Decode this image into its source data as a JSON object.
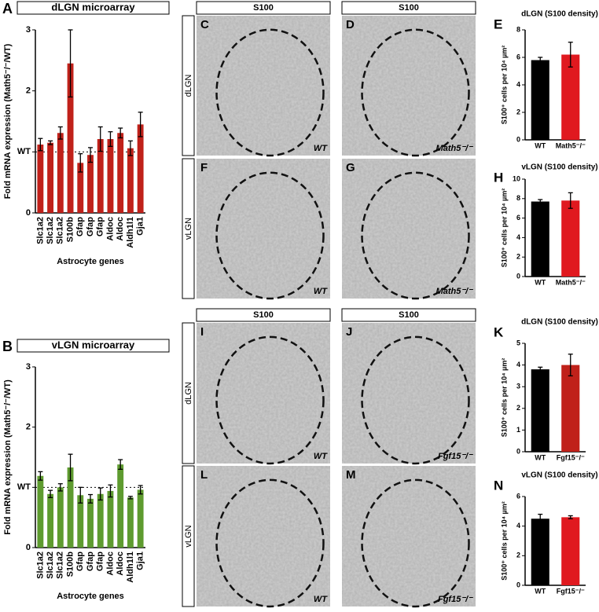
{
  "chart_data": [
    {
      "type": "bar",
      "panel": "A",
      "title": "dLGN microarray",
      "y_label": "Fold mRNA expression (Math5⁻/⁻/WT)",
      "x_label": "Astrocyte genes",
      "categories": [
        "Slc1a2",
        "Slc1a2",
        "Slc1a2",
        "S100b",
        "Gfap",
        "Gfap",
        "Gfap",
        "Aldoc",
        "Aldoc",
        "Aldh1l1",
        "Gja1"
      ],
      "values": [
        1.12,
        1.15,
        1.31,
        2.45,
        0.82,
        0.95,
        1.21,
        1.21,
        1.31,
        1.06,
        1.45
      ],
      "errors": [
        0.1,
        0.03,
        0.1,
        0.55,
        0.15,
        0.12,
        0.2,
        0.12,
        0.08,
        0.12,
        0.2
      ],
      "color": "#c0211a",
      "ylim": [
        0,
        3
      ],
      "yticks": [
        0,
        {
          "value": 1,
          "label": "WT"
        },
        2,
        3
      ],
      "reference_line": 1
    },
    {
      "type": "bar",
      "panel": "B",
      "title": "vLGN microarray",
      "y_label": "Fold mRNA expression (Math5⁻/⁻/WT)",
      "x_label": "Astrocyte genes",
      "categories": [
        "Slc1a2",
        "Slc1a2",
        "Slc1a2",
        "S100b",
        "Gfap",
        "Gfap",
        "Gfap",
        "Aldoc",
        "Aldoc",
        "Aldh1l1",
        "Gja1"
      ],
      "values": [
        1.19,
        0.89,
        1.0,
        1.33,
        0.87,
        0.81,
        0.89,
        0.94,
        1.38,
        0.83,
        0.96
      ],
      "errors": [
        0.07,
        0.06,
        0.06,
        0.22,
        0.13,
        0.07,
        0.1,
        0.1,
        0.08,
        0.02,
        0.07
      ],
      "color": "#5e9b2f",
      "ylim": [
        0,
        3
      ],
      "yticks": [
        0,
        {
          "value": 1,
          "label": "WT"
        },
        2,
        3
      ],
      "reference_line": 1
    },
    {
      "type": "bar",
      "panel": "E",
      "title": "dLGN (S100 density)",
      "y_label": "S100⁺ cells per 10⁴ µm²",
      "categories": [
        "WT",
        "Math5⁻/⁻"
      ],
      "values": [
        5.8,
        6.2
      ],
      "errors": [
        0.2,
        0.9
      ],
      "colors": [
        "#000000",
        "#e0191f"
      ],
      "ylim": [
        0,
        8
      ],
      "yticks": [
        0,
        2,
        4,
        6,
        8
      ]
    },
    {
      "type": "bar",
      "panel": "H",
      "title": "vLGN (S100 density)",
      "y_label": "S100⁺ cells per 10⁴ µm²",
      "categories": [
        "WT",
        "Math5⁻/⁻"
      ],
      "values": [
        7.7,
        7.8
      ],
      "errors": [
        0.2,
        0.8
      ],
      "colors": [
        "#000000",
        "#e0191f"
      ],
      "ylim": [
        0,
        10
      ],
      "yticks": [
        0,
        2,
        4,
        6,
        8,
        10
      ]
    },
    {
      "type": "bar",
      "panel": "K",
      "title": "dLGN (S100 density)",
      "y_label": "S100⁺ cells per 10⁴ µm²",
      "categories": [
        "WT",
        "Fgf15⁻/⁻"
      ],
      "values": [
        3.8,
        4.0
      ],
      "errors": [
        0.1,
        0.5
      ],
      "colors": [
        "#000000",
        "#c0211a"
      ],
      "ylim": [
        0,
        5
      ],
      "yticks": [
        0,
        1,
        2,
        3,
        4,
        5
      ]
    },
    {
      "type": "bar",
      "panel": "N",
      "title": "vLGN (S100 density)",
      "y_label": "S100⁺ cells per 10⁴ µm²",
      "categories": [
        "WT",
        "Fgf15⁻/⁻"
      ],
      "values": [
        4.5,
        4.6
      ],
      "errors": [
        0.3,
        0.1
      ],
      "colors": [
        "#000000",
        "#e0191f"
      ],
      "ylim": [
        0,
        6
      ],
      "yticks": [
        0,
        2,
        4,
        6
      ]
    }
  ],
  "micrographs": [
    {
      "headers": [
        "S100",
        "S100"
      ],
      "row_labels": [
        "dLGN",
        "vLGN"
      ],
      "panels": [
        {
          "letter": "C",
          "genotype": "WT"
        },
        {
          "letter": "D",
          "genotype": "Math5⁻/⁻"
        },
        {
          "letter": "F",
          "genotype": "WT"
        },
        {
          "letter": "G",
          "genotype": "Math5⁻/⁻"
        }
      ]
    },
    {
      "headers": [
        "S100",
        "S100"
      ],
      "row_labels": [
        "dLGN",
        "vLGN"
      ],
      "panels": [
        {
          "letter": "I",
          "genotype": "WT"
        },
        {
          "letter": "J",
          "genotype": "Fgf15⁻/⁻"
        },
        {
          "letter": "L",
          "genotype": "WT"
        },
        {
          "letter": "M",
          "genotype": "Fgf15⁻/⁻"
        }
      ]
    }
  ]
}
